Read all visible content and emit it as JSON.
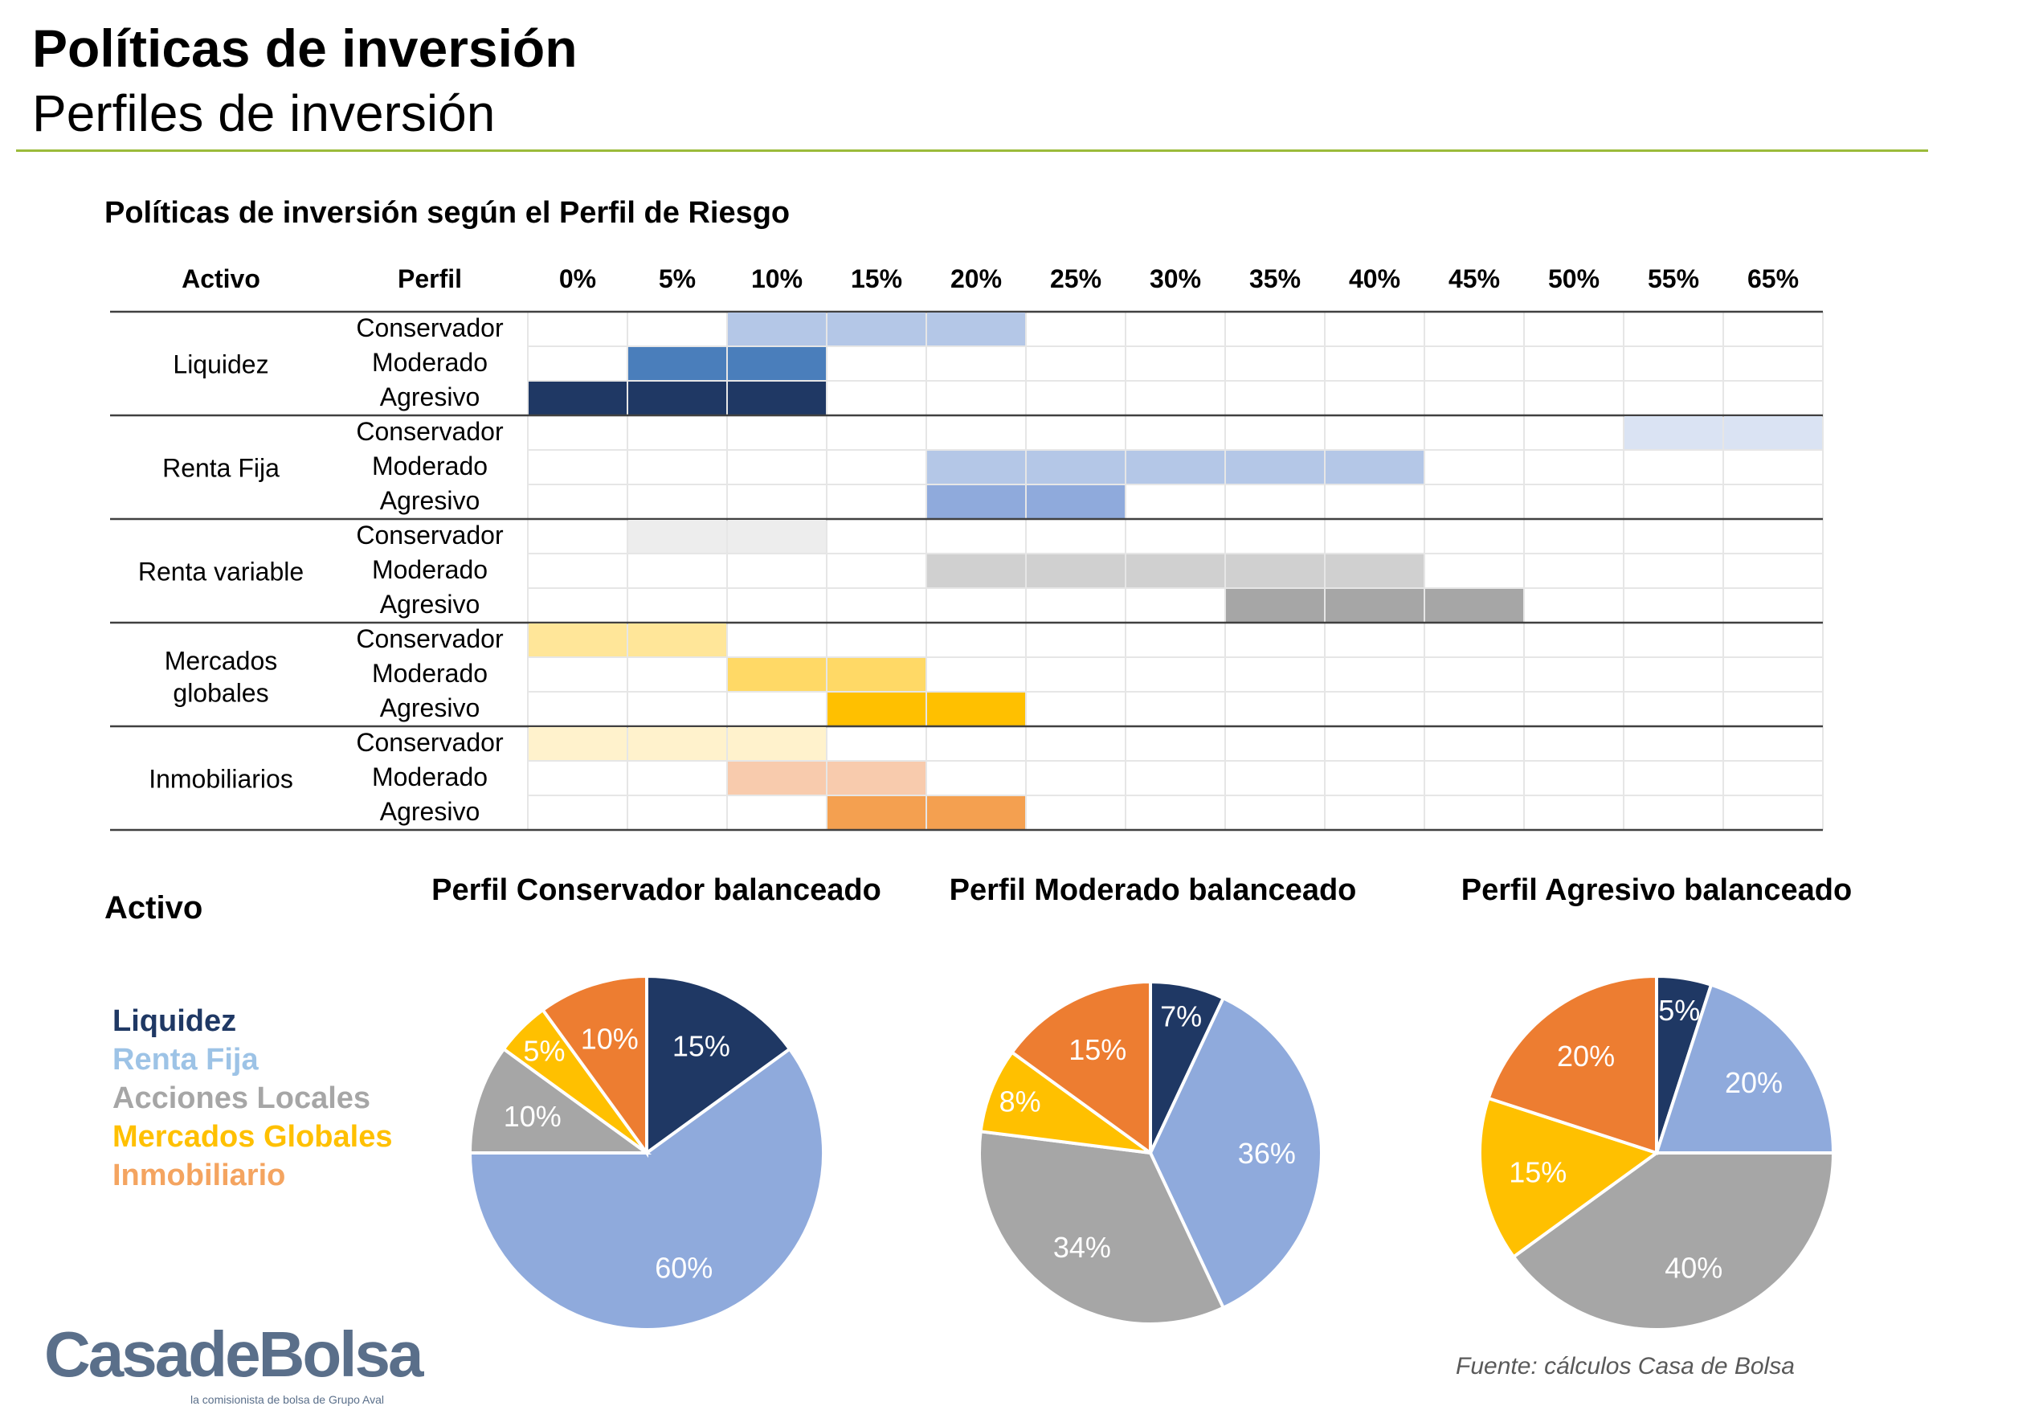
{
  "header": {
    "title": "Políticas de inversión",
    "subtitle": "Perfiles de inversión"
  },
  "section_title": "Políticas de inversión según el Perfil de Riesgo",
  "legend": {
    "heading": "Activo",
    "items": [
      {
        "label": "Liquidez",
        "color": "#1f3864"
      },
      {
        "label": "Renta Fija",
        "color": "#9dc3e6"
      },
      {
        "label": "Acciones Locales",
        "color": "#a6a6a6"
      },
      {
        "label": "Mercados Globales",
        "color": "#ffc000"
      },
      {
        "label": "Inmobiliario",
        "color": "#f4a460"
      }
    ]
  },
  "source_note": "Fuente: cálculos Casa de Bolsa",
  "logo": {
    "text": "CasadeBolsa",
    "tagline": "la comisionista de bolsa de Grupo Aval"
  },
  "chart_data": [
    {
      "type": "table",
      "title": "Políticas de inversión según el Perfil de Riesgo",
      "headers": [
        "Activo",
        "Perfil",
        "0%",
        "5%",
        "10%",
        "15%",
        "20%",
        "25%",
        "30%",
        "35%",
        "40%",
        "45%",
        "50%",
        "55%",
        "65%"
      ],
      "groups": [
        {
          "asset": "Liquidez",
          "rows": [
            {
              "profile": "Conservador",
              "from": "10%",
              "to": "20%",
              "color": "#b4c7e7"
            },
            {
              "profile": "Moderado",
              "from": "5%",
              "to": "10%",
              "color": "#4a7ebb"
            },
            {
              "profile": "Agresivo",
              "from": "0%",
              "to": "10%",
              "color": "#1f3864"
            }
          ]
        },
        {
          "asset": "Renta Fija",
          "rows": [
            {
              "profile": "Conservador",
              "from": "55%",
              "to": "65%",
              "color": "#dae3f3"
            },
            {
              "profile": "Moderado",
              "from": "20%",
              "to": "40%",
              "color": "#b4c7e7"
            },
            {
              "profile": "Agresivo",
              "from": "20%",
              "to": "25%",
              "color": "#8faadc"
            }
          ]
        },
        {
          "asset": "Renta variable",
          "rows": [
            {
              "profile": "Conservador",
              "from": "5%",
              "to": "10%",
              "color": "#ededed"
            },
            {
              "profile": "Moderado",
              "from": "20%",
              "to": "40%",
              "color": "#d0d0d0"
            },
            {
              "profile": "Agresivo",
              "from": "35%",
              "to": "45%",
              "color": "#a6a6a6"
            }
          ]
        },
        {
          "asset": "Mercados globales",
          "rows": [
            {
              "profile": "Conservador",
              "from": "0%",
              "to": "5%",
              "color": "#ffe699"
            },
            {
              "profile": "Moderado",
              "from": "10%",
              "to": "15%",
              "color": "#ffd966"
            },
            {
              "profile": "Agresivo",
              "from": "15%",
              "to": "20%",
              "color": "#ffc000"
            }
          ]
        },
        {
          "asset": "Inmobiliarios",
          "rows": [
            {
              "profile": "Conservador",
              "from": "0%",
              "to": "10%",
              "color": "#fff2cc"
            },
            {
              "profile": "Moderado",
              "from": "10%",
              "to": "15%",
              "color": "#f8cbad"
            },
            {
              "profile": "Agresivo",
              "from": "15%",
              "to": "20%",
              "color": "#f4a050"
            }
          ]
        }
      ]
    },
    {
      "type": "pie",
      "title": "Perfil Conservador balanceado",
      "labels": [
        "Liquidez",
        "Renta Fija",
        "Acciones Locales",
        "Mercados Globales",
        "Inmobiliario"
      ],
      "values": [
        15,
        60,
        10,
        5,
        10
      ],
      "value_labels": [
        "15%",
        "60%",
        "10%",
        "5%",
        "10%"
      ],
      "colors": [
        "#1f3864",
        "#8faadc",
        "#a6a6a6",
        "#ffc000",
        "#ed7d31"
      ]
    },
    {
      "type": "pie",
      "title": "Perfil Moderado balanceado",
      "labels": [
        "Liquidez",
        "Renta Fija",
        "Acciones Locales",
        "Mercados Globales",
        "Inmobiliario"
      ],
      "values": [
        7,
        36,
        34,
        8,
        15
      ],
      "value_labels": [
        "7%",
        "36%",
        "34%",
        "8%",
        "15%"
      ],
      "colors": [
        "#1f3864",
        "#8faadc",
        "#a6a6a6",
        "#ffc000",
        "#ed7d31"
      ]
    },
    {
      "type": "pie",
      "title": "Perfil Agresivo balanceado",
      "labels": [
        "Liquidez",
        "Renta Fija",
        "Acciones Locales",
        "Mercados Globales",
        "Inmobiliario"
      ],
      "values": [
        5,
        20,
        40,
        15,
        20
      ],
      "value_labels": [
        "5%",
        "20%",
        "40%",
        "15%",
        "20%"
      ],
      "colors": [
        "#1f3864",
        "#8faadc",
        "#a6a6a6",
        "#ffc000",
        "#ed7d31"
      ]
    }
  ]
}
